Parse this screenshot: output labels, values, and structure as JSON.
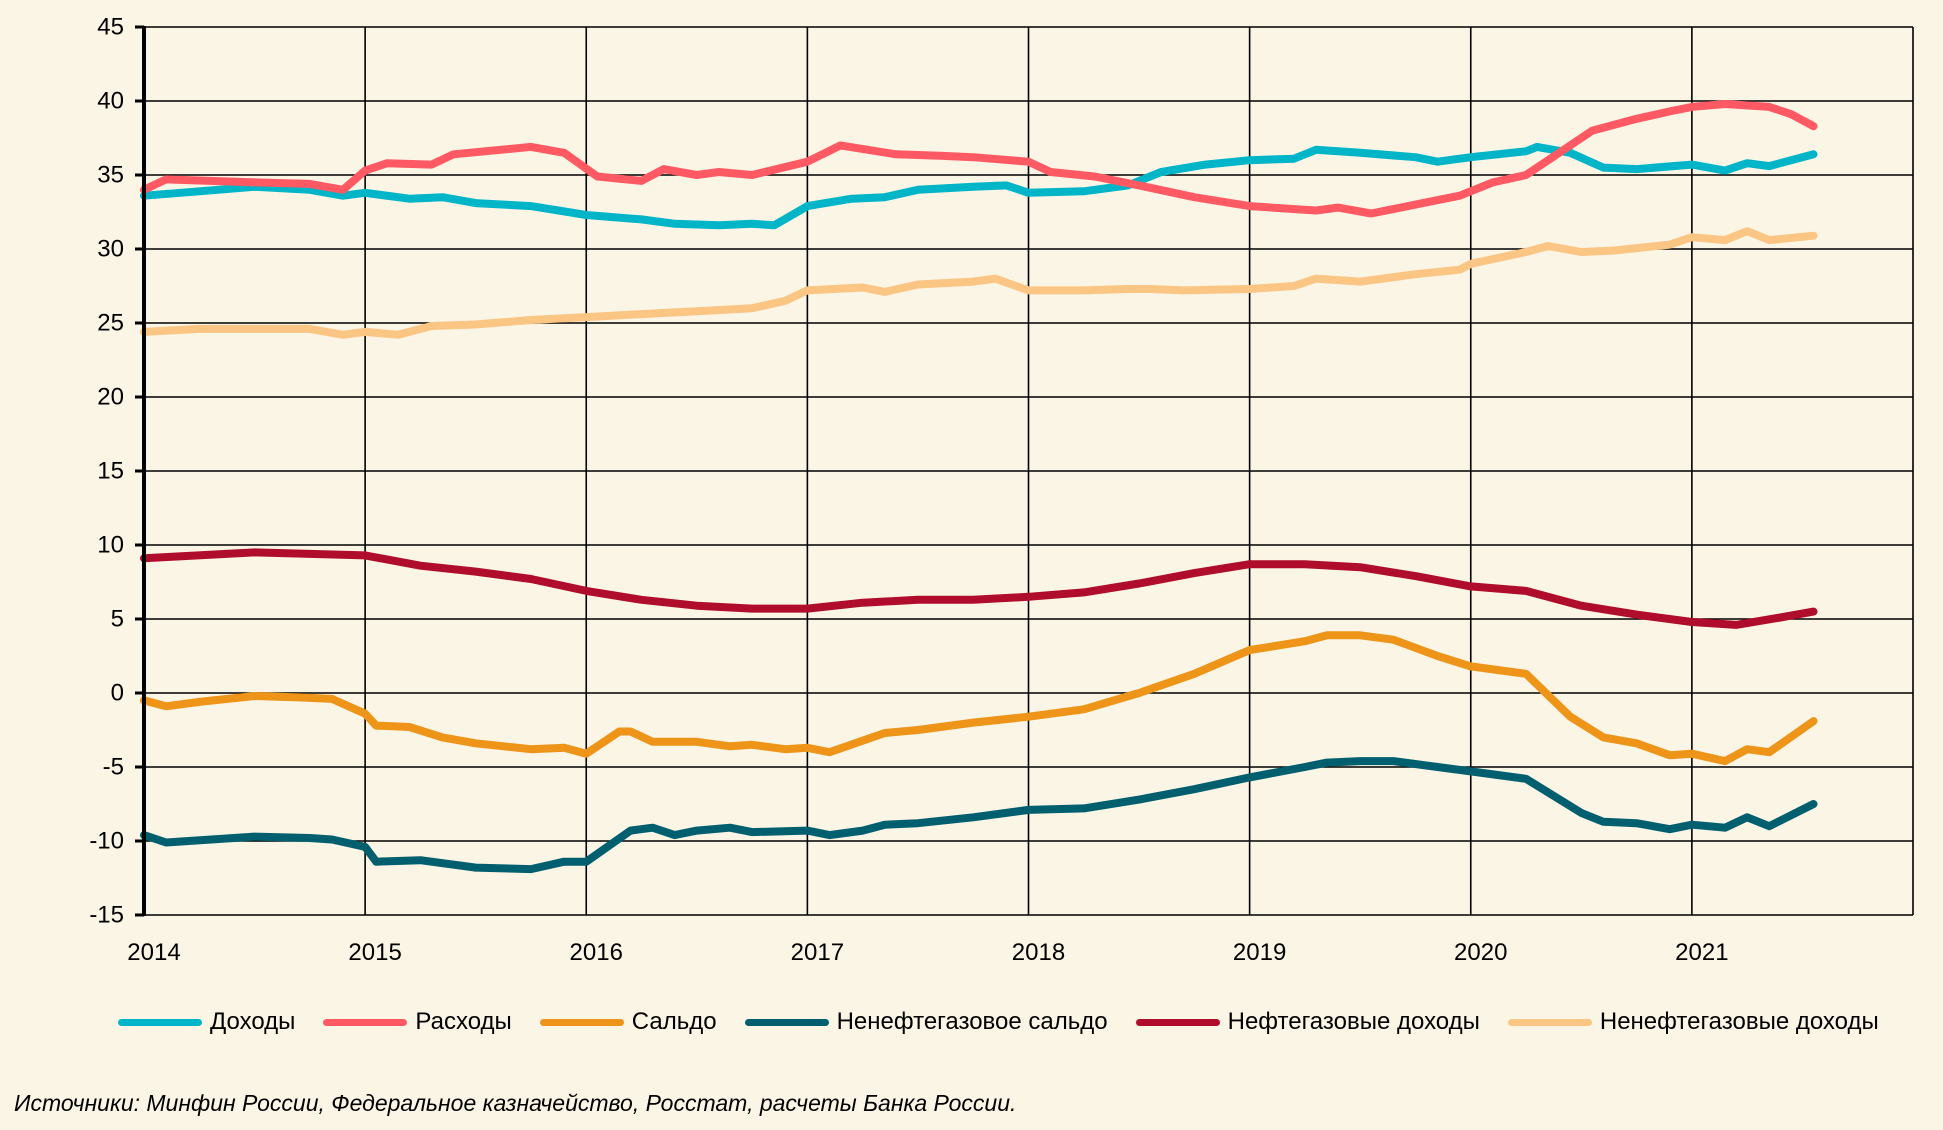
{
  "chart_data": {
    "type": "line",
    "title": "",
    "xlabel": "",
    "ylabel": "",
    "xlim": [
      2014,
      2022
    ],
    "ylim": [
      -15,
      45
    ],
    "x_ticks": [
      "2014",
      "2015",
      "2016",
      "2017",
      "2018",
      "2019",
      "2020",
      "2021"
    ],
    "y_ticks": [
      "45",
      "40",
      "35",
      "30",
      "25",
      "20",
      "15",
      "10",
      "5",
      "0",
      "-5",
      "-10",
      "-15"
    ],
    "grid": true,
    "legend_position": "bottom",
    "series": [
      {
        "name": "Доходы",
        "color": "#00B5C8",
        "points": [
          [
            2014.0,
            33.6
          ],
          [
            2014.25,
            33.9
          ],
          [
            2014.5,
            34.2
          ],
          [
            2014.75,
            34.0
          ],
          [
            2014.9,
            33.6
          ],
          [
            2015.0,
            33.8
          ],
          [
            2015.2,
            33.4
          ],
          [
            2015.35,
            33.5
          ],
          [
            2015.5,
            33.1
          ],
          [
            2015.75,
            32.9
          ],
          [
            2016.0,
            32.3
          ],
          [
            2016.25,
            32.0
          ],
          [
            2016.4,
            31.7
          ],
          [
            2016.6,
            31.6
          ],
          [
            2016.75,
            31.7
          ],
          [
            2016.85,
            31.6
          ],
          [
            2017.0,
            32.9
          ],
          [
            2017.2,
            33.4
          ],
          [
            2017.35,
            33.5
          ],
          [
            2017.5,
            34.0
          ],
          [
            2017.75,
            34.2
          ],
          [
            2017.9,
            34.3
          ],
          [
            2018.0,
            33.8
          ],
          [
            2018.25,
            33.9
          ],
          [
            2018.45,
            34.3
          ],
          [
            2018.6,
            35.2
          ],
          [
            2018.8,
            35.7
          ],
          [
            2019.0,
            36.0
          ],
          [
            2019.2,
            36.1
          ],
          [
            2019.3,
            36.7
          ],
          [
            2019.5,
            36.5
          ],
          [
            2019.75,
            36.2
          ],
          [
            2019.85,
            35.9
          ],
          [
            2020.0,
            36.2
          ],
          [
            2020.25,
            36.6
          ],
          [
            2020.3,
            36.9
          ],
          [
            2020.45,
            36.5
          ],
          [
            2020.6,
            35.5
          ],
          [
            2020.75,
            35.4
          ],
          [
            2021.0,
            35.7
          ],
          [
            2021.15,
            35.3
          ],
          [
            2021.25,
            35.8
          ],
          [
            2021.35,
            35.6
          ],
          [
            2021.55,
            36.4
          ]
        ]
      },
      {
        "name": "Расходы",
        "color": "#FF5A64",
        "points": [
          [
            2014.0,
            34.0
          ],
          [
            2014.1,
            34.7
          ],
          [
            2014.5,
            34.5
          ],
          [
            2014.75,
            34.4
          ],
          [
            2014.9,
            34.0
          ],
          [
            2015.0,
            35.3
          ],
          [
            2015.1,
            35.8
          ],
          [
            2015.3,
            35.7
          ],
          [
            2015.4,
            36.4
          ],
          [
            2015.75,
            36.9
          ],
          [
            2015.9,
            36.5
          ],
          [
            2016.05,
            34.9
          ],
          [
            2016.25,
            34.6
          ],
          [
            2016.35,
            35.4
          ],
          [
            2016.5,
            35.0
          ],
          [
            2016.6,
            35.2
          ],
          [
            2016.75,
            35.0
          ],
          [
            2017.0,
            35.9
          ],
          [
            2017.15,
            37.0
          ],
          [
            2017.4,
            36.4
          ],
          [
            2017.6,
            36.3
          ],
          [
            2017.75,
            36.2
          ],
          [
            2018.0,
            35.9
          ],
          [
            2018.1,
            35.2
          ],
          [
            2018.3,
            34.9
          ],
          [
            2018.5,
            34.3
          ],
          [
            2018.75,
            33.5
          ],
          [
            2019.0,
            32.9
          ],
          [
            2019.3,
            32.6
          ],
          [
            2019.4,
            32.8
          ],
          [
            2019.55,
            32.4
          ],
          [
            2019.75,
            33.0
          ],
          [
            2019.95,
            33.6
          ],
          [
            2020.1,
            34.5
          ],
          [
            2020.25,
            35.0
          ],
          [
            2020.4,
            36.5
          ],
          [
            2020.55,
            38.0
          ],
          [
            2020.75,
            38.8
          ],
          [
            2020.9,
            39.3
          ],
          [
            2021.0,
            39.6
          ],
          [
            2021.15,
            39.8
          ],
          [
            2021.35,
            39.6
          ],
          [
            2021.45,
            39.1
          ],
          [
            2021.55,
            38.3
          ]
        ]
      },
      {
        "name": "Сальдо",
        "color": "#EE9418",
        "points": [
          [
            2014.0,
            -0.5
          ],
          [
            2014.1,
            -0.9
          ],
          [
            2014.25,
            -0.6
          ],
          [
            2014.5,
            -0.2
          ],
          [
            2014.7,
            -0.3
          ],
          [
            2014.85,
            -0.4
          ],
          [
            2015.0,
            -1.4
          ],
          [
            2015.05,
            -2.2
          ],
          [
            2015.2,
            -2.3
          ],
          [
            2015.35,
            -3.0
          ],
          [
            2015.5,
            -3.4
          ],
          [
            2015.75,
            -3.8
          ],
          [
            2015.9,
            -3.7
          ],
          [
            2016.0,
            -4.1
          ],
          [
            2016.15,
            -2.6
          ],
          [
            2016.2,
            -2.6
          ],
          [
            2016.3,
            -3.3
          ],
          [
            2016.5,
            -3.3
          ],
          [
            2016.65,
            -3.6
          ],
          [
            2016.75,
            -3.5
          ],
          [
            2016.9,
            -3.8
          ],
          [
            2017.0,
            -3.7
          ],
          [
            2017.1,
            -4.0
          ],
          [
            2017.35,
            -2.7
          ],
          [
            2017.5,
            -2.5
          ],
          [
            2017.75,
            -2.0
          ],
          [
            2018.0,
            -1.6
          ],
          [
            2018.25,
            -1.1
          ],
          [
            2018.5,
            0.0
          ],
          [
            2018.75,
            1.3
          ],
          [
            2019.0,
            2.9
          ],
          [
            2019.25,
            3.5
          ],
          [
            2019.35,
            3.9
          ],
          [
            2019.5,
            3.9
          ],
          [
            2019.65,
            3.6
          ],
          [
            2019.85,
            2.5
          ],
          [
            2020.0,
            1.8
          ],
          [
            2020.25,
            1.3
          ],
          [
            2020.45,
            -1.6
          ],
          [
            2020.6,
            -3.0
          ],
          [
            2020.75,
            -3.4
          ],
          [
            2020.9,
            -4.2
          ],
          [
            2021.0,
            -4.1
          ],
          [
            2021.15,
            -4.6
          ],
          [
            2021.25,
            -3.8
          ],
          [
            2021.35,
            -4.0
          ],
          [
            2021.55,
            -1.9
          ]
        ]
      },
      {
        "name": "Ненефтегазовое сальдо",
        "color": "#005F6E",
        "points": [
          [
            2014.0,
            -9.6
          ],
          [
            2014.1,
            -10.1
          ],
          [
            2014.5,
            -9.7
          ],
          [
            2014.75,
            -9.8
          ],
          [
            2014.85,
            -9.9
          ],
          [
            2015.0,
            -10.4
          ],
          [
            2015.05,
            -11.4
          ],
          [
            2015.25,
            -11.3
          ],
          [
            2015.5,
            -11.8
          ],
          [
            2015.75,
            -11.9
          ],
          [
            2015.9,
            -11.4
          ],
          [
            2016.0,
            -11.4
          ],
          [
            2016.2,
            -9.3
          ],
          [
            2016.3,
            -9.1
          ],
          [
            2016.4,
            -9.6
          ],
          [
            2016.5,
            -9.3
          ],
          [
            2016.65,
            -9.1
          ],
          [
            2016.75,
            -9.4
          ],
          [
            2017.0,
            -9.3
          ],
          [
            2017.1,
            -9.6
          ],
          [
            2017.25,
            -9.3
          ],
          [
            2017.35,
            -8.9
          ],
          [
            2017.5,
            -8.8
          ],
          [
            2017.75,
            -8.4
          ],
          [
            2018.0,
            -7.9
          ],
          [
            2018.25,
            -7.8
          ],
          [
            2018.5,
            -7.2
          ],
          [
            2018.75,
            -6.5
          ],
          [
            2019.0,
            -5.7
          ],
          [
            2019.25,
            -5.0
          ],
          [
            2019.35,
            -4.7
          ],
          [
            2019.5,
            -4.6
          ],
          [
            2019.65,
            -4.6
          ],
          [
            2019.85,
            -5.0
          ],
          [
            2020.0,
            -5.3
          ],
          [
            2020.25,
            -5.8
          ],
          [
            2020.5,
            -8.1
          ],
          [
            2020.6,
            -8.7
          ],
          [
            2020.75,
            -8.8
          ],
          [
            2020.9,
            -9.2
          ],
          [
            2021.0,
            -8.9
          ],
          [
            2021.15,
            -9.1
          ],
          [
            2021.25,
            -8.4
          ],
          [
            2021.35,
            -9.0
          ],
          [
            2021.55,
            -7.5
          ]
        ]
      },
      {
        "name": "Нефтегазовые доходы",
        "color": "#B00C2C",
        "points": [
          [
            2014.0,
            9.1
          ],
          [
            2014.5,
            9.5
          ],
          [
            2014.75,
            9.4
          ],
          [
            2015.0,
            9.3
          ],
          [
            2015.25,
            8.6
          ],
          [
            2015.5,
            8.2
          ],
          [
            2015.75,
            7.7
          ],
          [
            2016.0,
            6.9
          ],
          [
            2016.25,
            6.3
          ],
          [
            2016.5,
            5.9
          ],
          [
            2016.75,
            5.7
          ],
          [
            2017.0,
            5.7
          ],
          [
            2017.25,
            6.1
          ],
          [
            2017.5,
            6.3
          ],
          [
            2017.75,
            6.3
          ],
          [
            2018.0,
            6.5
          ],
          [
            2018.25,
            6.8
          ],
          [
            2018.5,
            7.4
          ],
          [
            2018.75,
            8.1
          ],
          [
            2019.0,
            8.7
          ],
          [
            2019.25,
            8.7
          ],
          [
            2019.5,
            8.5
          ],
          [
            2019.75,
            7.9
          ],
          [
            2020.0,
            7.2
          ],
          [
            2020.25,
            6.9
          ],
          [
            2020.5,
            5.9
          ],
          [
            2020.75,
            5.3
          ],
          [
            2021.0,
            4.8
          ],
          [
            2021.2,
            4.6
          ],
          [
            2021.4,
            5.1
          ],
          [
            2021.55,
            5.5
          ]
        ]
      },
      {
        "name": "Ненефтегазовые доходы",
        "color": "#FBC584",
        "points": [
          [
            2014.0,
            24.4
          ],
          [
            2014.25,
            24.6
          ],
          [
            2014.5,
            24.6
          ],
          [
            2014.75,
            24.6
          ],
          [
            2014.9,
            24.2
          ],
          [
            2015.0,
            24.4
          ],
          [
            2015.15,
            24.2
          ],
          [
            2015.3,
            24.8
          ],
          [
            2015.5,
            24.9
          ],
          [
            2015.75,
            25.2
          ],
          [
            2016.0,
            25.4
          ],
          [
            2016.25,
            25.6
          ],
          [
            2016.5,
            25.8
          ],
          [
            2016.75,
            26.0
          ],
          [
            2016.9,
            26.5
          ],
          [
            2017.0,
            27.2
          ],
          [
            2017.25,
            27.4
          ],
          [
            2017.35,
            27.1
          ],
          [
            2017.5,
            27.6
          ],
          [
            2017.75,
            27.8
          ],
          [
            2017.85,
            28.0
          ],
          [
            2018.0,
            27.2
          ],
          [
            2018.25,
            27.2
          ],
          [
            2018.45,
            27.3
          ],
          [
            2018.55,
            27.3
          ],
          [
            2018.7,
            27.2
          ],
          [
            2019.0,
            27.3
          ],
          [
            2019.2,
            27.5
          ],
          [
            2019.3,
            28.0
          ],
          [
            2019.5,
            27.8
          ],
          [
            2019.75,
            28.3
          ],
          [
            2019.95,
            28.6
          ],
          [
            2020.0,
            29.0
          ],
          [
            2020.25,
            29.8
          ],
          [
            2020.35,
            30.2
          ],
          [
            2020.5,
            29.8
          ],
          [
            2020.65,
            29.9
          ],
          [
            2020.9,
            30.3
          ],
          [
            2021.0,
            30.8
          ],
          [
            2021.15,
            30.6
          ],
          [
            2021.25,
            31.2
          ],
          [
            2021.35,
            30.6
          ],
          [
            2021.55,
            30.9
          ]
        ]
      }
    ]
  },
  "legend": {
    "items": [
      {
        "label": "Доходы",
        "color": "#00B5C8"
      },
      {
        "label": "Расходы",
        "color": "#FF5A64"
      },
      {
        "label": "Сальдо",
        "color": "#EE9418"
      },
      {
        "label": "Ненефтегазовое сальдо",
        "color": "#005F6E"
      },
      {
        "label": "Нефтегазовые доходы",
        "color": "#B00C2C"
      },
      {
        "label": "Ненефтегазовые доходы",
        "color": "#FBC584"
      }
    ]
  },
  "source_note": "Источники: Минфин России, Федеральное казначейство, Росстат, расчеты Банка России."
}
